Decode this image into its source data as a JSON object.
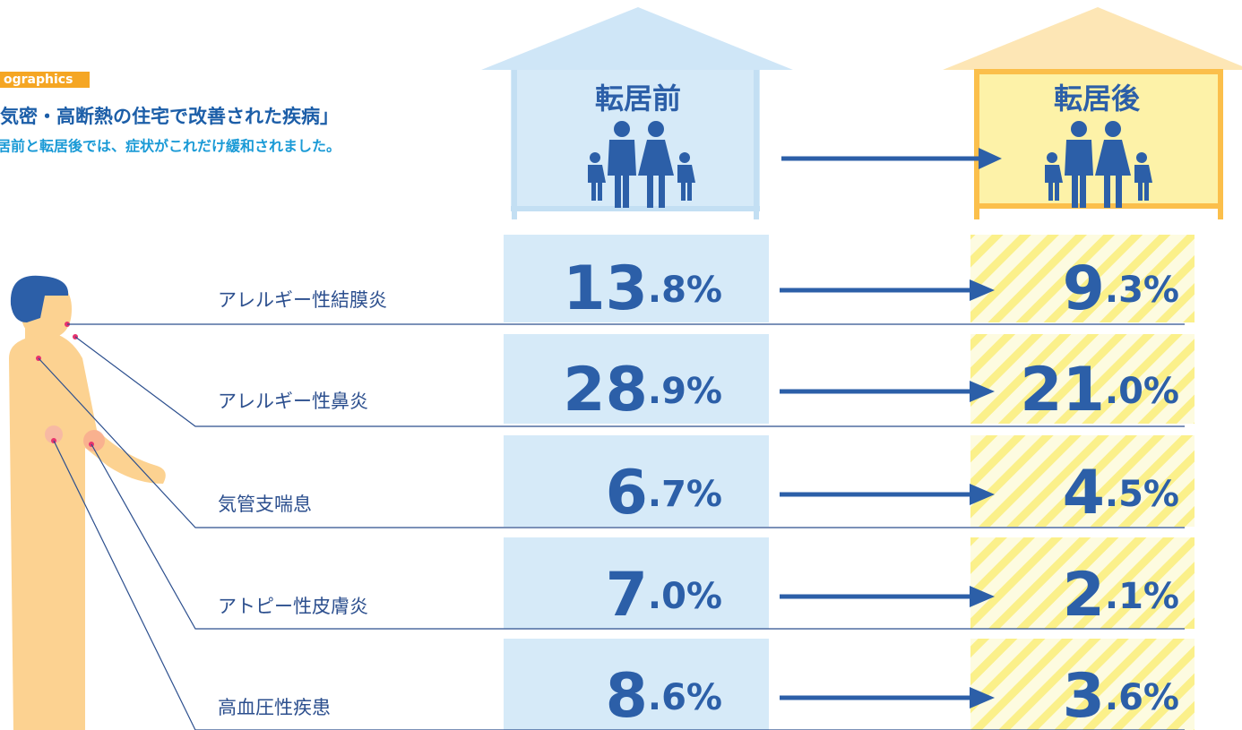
{
  "header": {
    "tag": "ographics",
    "title": "気密・高断熱の住宅で改善された疾病」",
    "subtitle": "居前と転居後では、症状がこれだけ緩和されました。"
  },
  "houses": {
    "before": "転居前",
    "after": "転居後"
  },
  "rows": [
    {
      "label": "アレルギー性結膜炎",
      "before": "13.8%",
      "after": "9.3%"
    },
    {
      "label": "アレルギー性鼻炎",
      "before": "28.9%",
      "after": "21.0%"
    },
    {
      "label": "気管支喘息",
      "before": "6.7%",
      "after": "4.5%"
    },
    {
      "label": "アトピー性皮膚炎",
      "before": "7.0%",
      "after": "2.1%"
    },
    {
      "label": "高血圧性疾患",
      "before": "8.6%",
      "after": "3.6%"
    }
  ]
}
